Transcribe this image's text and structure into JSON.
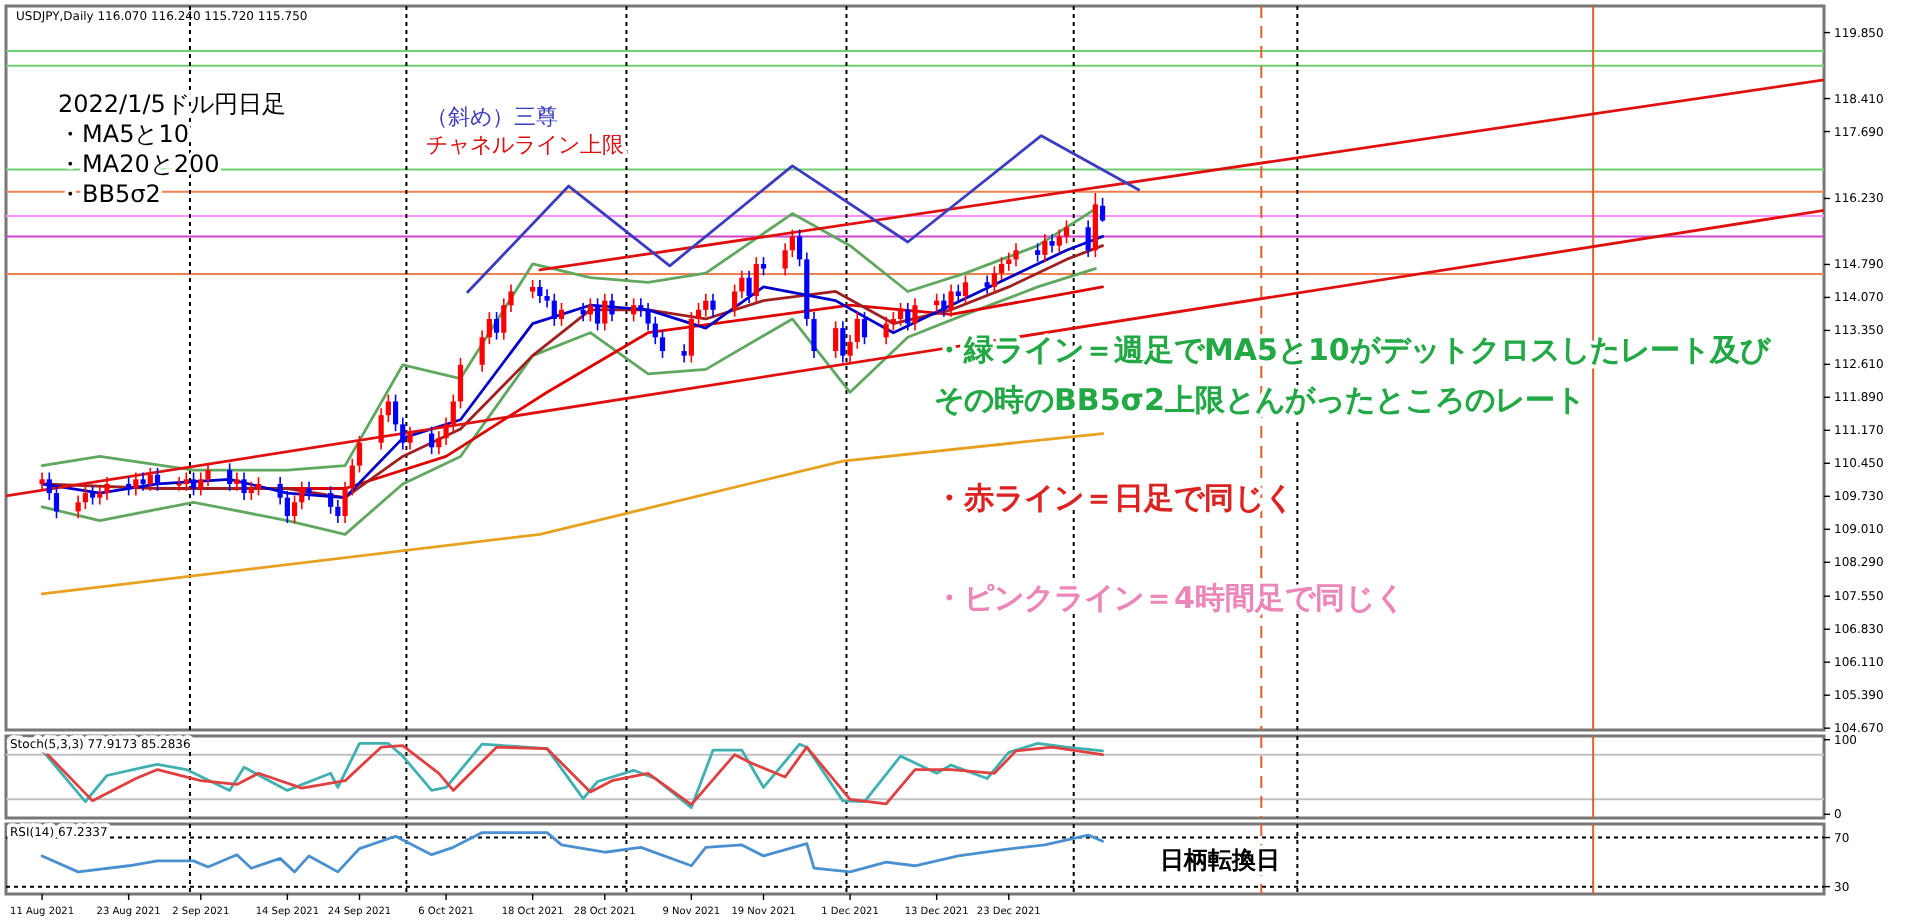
{
  "chart_data": [
    {
      "type": "candlestick",
      "title": "USDJPY,Daily 116.070 116.240 115.720 115.750",
      "annotations": [
        "2022/1/5ドル円日足",
        "・MA5と10",
        "・MA20と200",
        "・BB5σ2",
        "（斜め）三尊",
        "チャネルライン上限",
        "・緑ライン＝週足でMA5と10がデットクロスしたレート及び",
        "その時のBB5σ2上限とんがったところのレート",
        "・赤ライン＝日足で同じく",
        "・ピンクライン＝4時間足で同じく"
      ],
      "x": [
        "2021-08-11",
        "2021-08-12",
        "2021-08-13",
        "2021-08-16",
        "2021-08-17",
        "2021-08-18",
        "2021-08-19",
        "2021-08-20",
        "2021-08-23",
        "2021-08-24",
        "2021-08-25",
        "2021-08-26",
        "2021-08-27",
        "2021-08-30",
        "2021-08-31",
        "2021-09-01",
        "2021-09-02",
        "2021-09-03",
        "2021-09-06",
        "2021-09-07",
        "2021-09-08",
        "2021-09-09",
        "2021-09-10",
        "2021-09-13",
        "2021-09-14",
        "2021-09-15",
        "2021-09-16",
        "2021-09-17",
        "2021-09-20",
        "2021-09-21",
        "2021-09-22",
        "2021-09-23",
        "2021-09-24",
        "2021-09-27",
        "2021-09-28",
        "2021-09-29",
        "2021-09-30",
        "2021-10-01",
        "2021-10-04",
        "2021-10-05",
        "2021-10-06",
        "2021-10-07",
        "2021-10-08",
        "2021-10-11",
        "2021-10-12",
        "2021-10-13",
        "2021-10-14",
        "2021-10-15",
        "2021-10-18",
        "2021-10-19",
        "2021-10-20",
        "2021-10-21",
        "2021-10-22",
        "2021-10-25",
        "2021-10-26",
        "2021-10-27",
        "2021-10-28",
        "2021-10-29",
        "2021-11-01",
        "2021-11-02",
        "2021-11-03",
        "2021-11-04",
        "2021-11-05",
        "2021-11-08",
        "2021-11-09",
        "2021-11-10",
        "2021-11-11",
        "2021-11-12",
        "2021-11-15",
        "2021-11-16",
        "2021-11-17",
        "2021-11-18",
        "2021-11-19",
        "2021-11-22",
        "2021-11-23",
        "2021-11-24",
        "2021-11-25",
        "2021-11-26",
        "2021-11-29",
        "2021-11-30",
        "2021-12-01",
        "2021-12-02",
        "2021-12-03",
        "2021-12-06",
        "2021-12-07",
        "2021-12-08",
        "2021-12-09",
        "2021-12-10",
        "2021-12-13",
        "2021-12-14",
        "2021-12-15",
        "2021-12-16",
        "2021-12-17",
        "2021-12-20",
        "2021-12-21",
        "2021-12-22",
        "2021-12-23",
        "2021-12-24",
        "2021-12-27",
        "2021-12-28",
        "2021-12-29",
        "2021-12-30",
        "2021-12-31",
        "2022-01-03",
        "2022-01-04",
        "2022-01-05"
      ],
      "ohlc": [
        [
          110.0,
          110.25,
          109.85,
          110.1
        ],
        [
          110.1,
          110.25,
          109.65,
          109.8
        ],
        [
          109.8,
          109.95,
          109.25,
          109.4
        ],
        [
          109.4,
          109.75,
          109.25,
          109.6
        ],
        [
          109.6,
          109.95,
          109.45,
          109.8
        ],
        [
          109.8,
          109.95,
          109.55,
          109.7
        ],
        [
          109.7,
          109.95,
          109.55,
          109.8
        ],
        [
          109.8,
          110.15,
          109.65,
          110.0
        ],
        [
          110.0,
          110.15,
          109.75,
          109.9
        ],
        [
          109.9,
          110.25,
          109.75,
          110.1
        ],
        [
          110.1,
          110.25,
          109.85,
          110.0
        ],
        [
          110.0,
          110.35,
          109.85,
          110.2
        ],
        [
          110.2,
          110.35,
          109.85,
          110.0
        ],
        [
          110.0,
          110.15,
          109.85,
          110.0
        ],
        [
          110.0,
          110.25,
          109.85,
          110.1
        ],
        [
          110.1,
          110.25,
          109.75,
          109.9
        ],
        [
          109.9,
          110.25,
          109.75,
          110.1
        ],
        [
          110.1,
          110.45,
          109.95,
          110.3
        ],
        [
          110.3,
          110.45,
          109.85,
          110.0
        ],
        [
          110.0,
          110.25,
          109.85,
          110.1
        ],
        [
          110.1,
          110.25,
          109.65,
          109.8
        ],
        [
          109.8,
          110.05,
          109.65,
          109.9
        ],
        [
          109.9,
          110.15,
          109.75,
          110.0
        ],
        [
          110.0,
          110.15,
          109.55,
          109.7
        ],
        [
          109.7,
          109.85,
          109.15,
          109.3
        ],
        [
          109.3,
          109.75,
          109.15,
          109.6
        ],
        [
          109.6,
          110.05,
          109.45,
          109.9
        ],
        [
          109.9,
          110.05,
          109.65,
          109.8
        ],
        [
          109.8,
          109.95,
          109.35,
          109.5
        ],
        [
          109.5,
          109.65,
          109.15,
          109.3
        ],
        [
          109.3,
          110.05,
          109.15,
          109.9
        ],
        [
          109.9,
          110.55,
          109.75,
          110.4
        ],
        [
          110.4,
          111.05,
          110.25,
          110.9
        ],
        [
          110.9,
          111.65,
          110.75,
          111.5
        ],
        [
          111.5,
          111.95,
          111.35,
          111.8
        ],
        [
          111.8,
          111.95,
          111.15,
          111.3
        ],
        [
          111.3,
          111.45,
          110.75,
          110.9
        ],
        [
          110.9,
          111.25,
          110.75,
          111.1
        ],
        [
          111.1,
          111.25,
          110.65,
          110.8
        ],
        [
          110.8,
          111.15,
          110.65,
          111.0
        ],
        [
          111.0,
          111.45,
          110.85,
          111.3
        ],
        [
          111.3,
          111.95,
          111.15,
          111.8
        ],
        [
          111.8,
          112.75,
          111.65,
          112.6
        ],
        [
          112.6,
          113.35,
          112.45,
          113.2
        ],
        [
          113.2,
          113.75,
          113.05,
          113.6
        ],
        [
          113.6,
          113.75,
          113.15,
          113.3
        ],
        [
          113.3,
          114.05,
          113.15,
          113.9
        ],
        [
          113.9,
          114.35,
          113.75,
          114.2
        ],
        [
          114.2,
          114.45,
          114.05,
          114.3
        ],
        [
          114.3,
          114.45,
          113.95,
          114.1
        ],
        [
          114.1,
          114.25,
          113.85,
          114.0
        ],
        [
          114.0,
          114.15,
          113.45,
          113.6
        ],
        [
          113.6,
          113.95,
          113.45,
          113.8
        ],
        [
          113.8,
          113.95,
          113.55,
          113.7
        ],
        [
          113.7,
          114.05,
          113.55,
          113.9
        ],
        [
          113.9,
          114.05,
          113.35,
          113.5
        ],
        [
          113.5,
          114.15,
          113.35,
          114.0
        ],
        [
          114.0,
          114.15,
          113.55,
          113.7
        ],
        [
          113.7,
          114.05,
          113.55,
          113.9
        ],
        [
          113.9,
          114.05,
          113.65,
          113.8
        ],
        [
          113.8,
          113.95,
          113.35,
          113.5
        ],
        [
          113.5,
          113.65,
          113.05,
          113.2
        ],
        [
          113.2,
          113.35,
          112.75,
          112.9
        ],
        [
          112.9,
          113.05,
          112.65,
          112.8
        ],
        [
          112.8,
          113.75,
          112.65,
          113.6
        ],
        [
          113.6,
          113.95,
          113.45,
          113.8
        ],
        [
          113.8,
          114.15,
          113.65,
          114.0
        ],
        [
          114.0,
          114.15,
          113.65,
          113.8
        ],
        [
          113.8,
          114.35,
          113.65,
          114.2
        ],
        [
          114.2,
          114.65,
          114.05,
          114.5
        ],
        [
          114.5,
          114.65,
          113.95,
          114.1
        ],
        [
          114.1,
          114.95,
          113.95,
          114.8
        ],
        [
          114.8,
          114.95,
          114.55,
          114.7
        ],
        [
          114.7,
          115.25,
          114.55,
          115.1
        ],
        [
          115.1,
          115.55,
          114.95,
          115.4
        ],
        [
          115.4,
          115.55,
          114.75,
          114.9
        ],
        [
          114.9,
          115.05,
          113.45,
          113.6
        ],
        [
          113.6,
          113.75,
          112.75,
          112.9
        ],
        [
          112.9,
          113.55,
          112.75,
          113.4
        ],
        [
          113.4,
          113.55,
          112.65,
          112.8
        ],
        [
          112.8,
          113.25,
          112.65,
          113.1
        ],
        [
          113.1,
          113.75,
          112.95,
          113.6
        ],
        [
          113.6,
          113.75,
          113.05,
          113.2
        ],
        [
          113.2,
          113.65,
          113.05,
          113.5
        ],
        [
          113.5,
          113.75,
          113.35,
          113.6
        ],
        [
          113.6,
          113.95,
          113.45,
          113.8
        ],
        [
          113.8,
          113.95,
          113.35,
          113.5
        ],
        [
          113.5,
          114.05,
          113.35,
          113.9
        ],
        [
          113.9,
          114.15,
          113.75,
          114.0
        ],
        [
          114.0,
          114.15,
          113.65,
          113.8
        ],
        [
          113.8,
          114.35,
          113.65,
          114.2
        ],
        [
          114.2,
          114.35,
          113.95,
          114.1
        ],
        [
          114.1,
          114.55,
          113.95,
          114.4
        ],
        [
          114.4,
          114.55,
          114.15,
          114.3
        ],
        [
          114.3,
          114.75,
          114.15,
          114.6
        ],
        [
          114.6,
          114.95,
          114.45,
          114.8
        ],
        [
          114.8,
          115.05,
          114.65,
          114.9
        ],
        [
          114.9,
          115.25,
          114.75,
          115.1
        ],
        [
          115.1,
          115.25,
          114.85,
          115.0
        ],
        [
          115.0,
          115.45,
          114.85,
          115.3
        ],
        [
          115.3,
          115.45,
          115.05,
          115.2
        ],
        [
          115.2,
          115.55,
          115.05,
          115.4
        ],
        [
          115.4,
          115.75,
          115.25,
          115.6
        ],
        [
          115.6,
          115.75,
          114.95,
          115.1
        ],
        [
          115.1,
          116.35,
          114.95,
          116.1
        ],
        [
          116.07,
          116.24,
          115.72,
          115.75
        ]
      ],
      "series": [
        {
          "type": "line",
          "color": "#e8a020",
          "x": [
            "2021-08-11",
            "2021-10-19",
            "2021-11-30",
            "2022-01-05"
          ],
          "values": [
            107.6,
            108.9,
            110.5,
            111.1
          ]
        },
        {
          "type": "line",
          "color": "#60a860",
          "x": [
            "2021-08-11",
            "2021-08-19",
            "2021-09-01",
            "2021-09-14",
            "2021-09-22",
            "2021-09-30",
            "2021-10-08",
            "2021-10-18",
            "2021-10-26",
            "2021-11-03",
            "2021-11-11",
            "2021-11-23",
            "2021-12-01",
            "2021-12-09",
            "2021-12-17",
            "2021-12-27",
            "2022-01-04"
          ],
          "values": [
            110.4,
            110.6,
            110.3,
            110.3,
            110.4,
            112.6,
            112.3,
            114.8,
            114.5,
            114.4,
            114.6,
            115.9,
            115.2,
            114.2,
            114.6,
            115.2,
            116.0
          ]
        },
        {
          "type": "line",
          "color": "#60a860",
          "x": [
            "2021-08-11",
            "2021-08-19",
            "2021-09-01",
            "2021-09-14",
            "2021-09-22",
            "2021-09-30",
            "2021-10-08",
            "2021-10-18",
            "2021-10-26",
            "2021-11-03",
            "2021-11-11",
            "2021-11-23",
            "2021-12-01",
            "2021-12-09",
            "2021-12-17",
            "2021-12-27",
            "2022-01-04"
          ],
          "values": [
            109.5,
            109.2,
            109.6,
            109.2,
            108.9,
            110.0,
            110.6,
            112.8,
            113.3,
            112.4,
            112.5,
            113.6,
            112.0,
            113.2,
            113.7,
            114.3,
            114.7
          ]
        },
        {
          "type": "line",
          "color": "#e00000",
          "x": [
            "2021-09-08",
            "2021-09-22",
            "2021-10-06",
            "2021-10-20",
            "2021-11-03",
            "2021-11-17",
            "2021-12-01",
            "2021-12-15",
            "2021-12-29",
            "2022-01-05"
          ],
          "values": [
            109.9,
            109.9,
            110.6,
            112.0,
            113.3,
            113.6,
            113.9,
            113.7,
            114.1,
            114.3
          ]
        },
        {
          "type": "line",
          "color": "#a02020",
          "x": [
            "2021-08-11",
            "2021-08-27",
            "2021-09-14",
            "2021-09-22",
            "2021-09-30",
            "2021-10-08",
            "2021-10-18",
            "2021-10-26",
            "2021-11-03",
            "2021-11-11",
            "2021-11-19",
            "2021-11-29",
            "2021-12-07",
            "2021-12-15",
            "2021-12-23",
            "2021-12-31",
            "2022-01-05"
          ],
          "values": [
            110.0,
            109.9,
            109.9,
            109.7,
            110.6,
            111.2,
            112.8,
            113.8,
            113.8,
            113.6,
            114.0,
            114.2,
            113.5,
            113.8,
            114.3,
            114.9,
            115.2
          ]
        },
        {
          "type": "line",
          "color": "#0000c8",
          "x": [
            "2021-08-11",
            "2021-08-19",
            "2021-08-27",
            "2021-09-06",
            "2021-09-14",
            "2021-09-22",
            "2021-09-30",
            "2021-10-08",
            "2021-10-18",
            "2021-10-26",
            "2021-11-03",
            "2021-11-11",
            "2021-11-19",
            "2021-11-29",
            "2021-12-07",
            "2021-12-15",
            "2021-12-23",
            "2021-12-31",
            "2022-01-05"
          ],
          "values": [
            110.0,
            109.8,
            110.0,
            110.1,
            109.8,
            109.7,
            111.0,
            111.4,
            113.5,
            113.9,
            113.8,
            113.4,
            114.3,
            114.0,
            113.3,
            113.9,
            114.5,
            115.1,
            115.4
          ]
        },
        {
          "type": "line",
          "color": "#e01010",
          "x": [
            "2021-08-06",
            "2022-04-15"
          ],
          "values": [
            109.74,
            115.97
          ]
        },
        {
          "type": "line",
          "color": "#e01010",
          "x": [
            "2021-10-19",
            "2022-04-15"
          ],
          "values": [
            114.67,
            118.82
          ]
        },
        {
          "type": "line",
          "color": "#3c3cc0",
          "x": [
            "2021-10-09",
            "2021-10-23",
            "2021-11-06",
            "2021-11-23",
            "2021-12-09",
            "2021-12-27T12:00",
            "2022-01-10"
          ],
          "values": [
            114.19,
            116.5,
            114.76,
            116.94,
            115.28,
            117.6,
            116.42
          ]
        }
      ],
      "xlim": [
        "2021-08-06",
        "2022-04-15"
      ],
      "ylim": [
        104.63,
        120.43
      ],
      "yticks": [
        {
          "value": 104.67,
          "label": "104.670"
        },
        {
          "value": 105.39,
          "label": "105.390"
        },
        {
          "value": 106.11,
          "label": "106.110"
        },
        {
          "value": 106.83,
          "label": "106.830"
        },
        {
          "value": 107.55,
          "label": "107.550"
        },
        {
          "value": 108.29,
          "label": "108.290"
        },
        {
          "value": 109.01,
          "label": "109.010"
        },
        {
          "value": 109.73,
          "label": "109.730"
        },
        {
          "value": 110.45,
          "label": "110.450"
        },
        {
          "value": 111.17,
          "label": "111.170"
        },
        {
          "value": 111.89,
          "label": "111.890"
        },
        {
          "value": 112.61,
          "label": "112.610"
        },
        {
          "value": 113.35,
          "label": "113.350"
        },
        {
          "value": 114.07,
          "label": "114.070"
        },
        {
          "value": 114.79,
          "label": "114.790"
        },
        {
          "value": 116.23,
          "label": "116.230"
        },
        {
          "value": 117.69,
          "label": "117.690"
        },
        {
          "value": 118.41,
          "label": "118.410"
        },
        {
          "value": 119.85,
          "label": "119.850"
        }
      ],
      "tick_labels": "y",
      "ref_lines": [
        {
          "axis": "y",
          "value": 119.446,
          "color": "#70d070"
        },
        {
          "axis": "y",
          "value": 119.126,
          "color": "#70d070"
        },
        {
          "axis": "y",
          "value": 116.863,
          "color": "#70d070"
        },
        {
          "axis": "y",
          "value": 116.376,
          "color": "#f08050"
        },
        {
          "axis": "y",
          "value": 115.849,
          "color": "#ff90ff"
        },
        {
          "axis": "y",
          "value": 115.4,
          "color": "#d040d0"
        },
        {
          "axis": "y",
          "value": 114.58,
          "color": "#f08050"
        },
        {
          "axis": "x",
          "value": "2021-08-31T12:00",
          "color": "#000000",
          "line_style": "dotted"
        },
        {
          "axis": "x",
          "value": "2021-09-30T12:00",
          "color": "#000000",
          "line_style": "dotted"
        },
        {
          "axis": "x",
          "value": "2021-10-31",
          "color": "#000000",
          "line_style": "dotted"
        },
        {
          "axis": "x",
          "value": "2021-11-30T12:00",
          "color": "#000000",
          "line_style": "dotted"
        },
        {
          "axis": "x",
          "value": "2022-01-01",
          "color": "#000000",
          "line_style": "dotted"
        },
        {
          "axis": "x",
          "value": "2022-02-01",
          "color": "#000000",
          "line_style": "dotted"
        },
        {
          "axis": "x",
          "value": "2022-01-27",
          "color": "#e06030",
          "line_style": "dashed"
        },
        {
          "axis": "x",
          "value": "2022-03-14",
          "color": "#e06030",
          "line_style": "solid"
        }
      ]
    },
    {
      "type": "line",
      "annotations": [
        "Stoch(5,3,3) 77.9173 85.2836"
      ],
      "series": [
        {
          "color": "#40b0b0",
          "x": [
            "2021-08-11",
            "2021-08-17",
            "2021-08-20",
            "2021-08-25",
            "2021-08-27",
            "2021-08-31",
            "2021-09-06",
            "2021-09-08",
            "2021-09-14",
            "2021-09-20",
            "2021-09-21",
            "2021-09-24",
            "2021-09-28",
            "2021-09-30",
            "2021-10-04",
            "2021-10-06",
            "2021-10-11",
            "2021-10-14",
            "2021-10-20",
            "2021-10-25",
            "2021-10-27",
            "2021-11-01",
            "2021-11-04",
            "2021-11-09",
            "2021-11-12",
            "2021-11-16",
            "2021-11-19",
            "2021-11-24",
            "2021-11-25",
            "2021-11-30",
            "2021-12-03",
            "2021-12-08",
            "2021-12-13",
            "2021-12-15",
            "2021-12-20",
            "2021-12-23",
            "2021-12-27",
            "2021-12-31",
            "2022-01-05"
          ],
          "values": [
            86,
            17,
            52,
            63,
            67,
            60,
            32,
            63,
            32,
            55,
            36,
            95,
            95,
            78,
            32,
            36,
            94,
            92,
            88,
            21,
            44,
            59,
            48,
            9,
            86,
            86,
            36,
            94,
            90,
            18,
            17,
            78,
            55,
            66,
            48,
            83,
            95,
            90,
            85
          ]
        },
        {
          "color": "#e04040",
          "x": [
            "2021-08-11",
            "2021-08-18",
            "2021-08-24",
            "2021-08-27",
            "2021-09-02",
            "2021-09-07",
            "2021-09-10",
            "2021-09-16",
            "2021-09-22",
            "2021-09-27",
            "2021-09-30",
            "2021-10-05",
            "2021-10-07",
            "2021-10-13",
            "2021-10-20",
            "2021-10-26",
            "2021-10-29",
            "2021-11-03",
            "2021-11-09",
            "2021-11-15",
            "2021-11-17",
            "2021-11-22",
            "2021-11-25",
            "2021-12-01",
            "2021-12-06",
            "2021-12-10",
            "2021-12-15",
            "2021-12-21",
            "2021-12-24",
            "2021-12-29",
            "2022-01-05"
          ],
          "values": [
            88,
            18,
            48,
            60,
            45,
            40,
            55,
            35,
            45,
            90,
            92,
            55,
            32,
            90,
            88,
            30,
            45,
            55,
            13,
            80,
            70,
            50,
            90,
            20,
            14,
            60,
            60,
            55,
            85,
            90,
            80
          ]
        }
      ],
      "xlim": [
        "2021-08-06",
        "2022-04-15"
      ],
      "ylim": [
        -5,
        105
      ],
      "yticks": [
        100,
        0
      ],
      "tick_labels": "y",
      "ref_lines": [
        {
          "axis": "y",
          "value": 80,
          "color": "#c0c0c0"
        },
        {
          "axis": "y",
          "value": 20,
          "color": "#c0c0c0"
        },
        {
          "axis": "x",
          "value": "2021-08-31T12:00",
          "color": "#000000",
          "line_style": "dotted"
        },
        {
          "axis": "x",
          "value": "2021-09-30T12:00",
          "color": "#000000",
          "line_style": "dotted"
        },
        {
          "axis": "x",
          "value": "2021-10-31",
          "color": "#000000",
          "line_style": "dotted"
        },
        {
          "axis": "x",
          "value": "2021-11-30T12:00",
          "color": "#000000",
          "line_style": "dotted"
        },
        {
          "axis": "x",
          "value": "2022-01-01",
          "color": "#000000",
          "line_style": "dotted"
        },
        {
          "axis": "x",
          "value": "2022-02-01",
          "color": "#000000",
          "line_style": "dotted"
        },
        {
          "axis": "x",
          "value": "2022-01-27",
          "color": "#e06030",
          "line_style": "dashed"
        },
        {
          "axis": "x",
          "value": "2022-03-14",
          "color": "#e06030",
          "line_style": "solid"
        }
      ]
    },
    {
      "type": "line",
      "annotations": [
        "RSI(14) 67.2337",
        "日柄転換日"
      ],
      "series": [
        {
          "color": "#4a90d0",
          "x": [
            "2021-08-11",
            "2021-08-16",
            "2021-08-23",
            "2021-08-27",
            "2021-09-01",
            "2021-09-03",
            "2021-09-07",
            "2021-09-09",
            "2021-09-13",
            "2021-09-15",
            "2021-09-17",
            "2021-09-21",
            "2021-09-24",
            "2021-09-29",
            "2021-10-04",
            "2021-10-07",
            "2021-10-11",
            "2021-10-15",
            "2021-10-20",
            "2021-10-22",
            "2021-10-28",
            "2021-11-02",
            "2021-11-09",
            "2021-11-11",
            "2021-11-16",
            "2021-11-19",
            "2021-11-25",
            "2021-11-26",
            "2021-12-01",
            "2021-12-06",
            "2021-12-10",
            "2021-12-16",
            "2021-12-22",
            "2021-12-28",
            "2022-01-03",
            "2022-01-05"
          ],
          "values": [
            55,
            42,
            47,
            51,
            51,
            46,
            56,
            45,
            53,
            42,
            55,
            42,
            61,
            71,
            56,
            62,
            74,
            74,
            74,
            64,
            58,
            62,
            47,
            62,
            64,
            55,
            65,
            45,
            42,
            50,
            47,
            55,
            60,
            64,
            72,
            67
          ]
        }
      ],
      "xlim": [
        "2021-08-06",
        "2022-04-15"
      ],
      "ylim": [
        24,
        81
      ],
      "yticks": [
        70,
        30
      ],
      "xticks": [
        {
          "value": "2021-08-11",
          "label": "11 Aug 2021"
        },
        {
          "value": "2021-08-23",
          "label": "23 Aug 2021"
        },
        {
          "value": "2021-09-02",
          "label": "2 Sep 2021"
        },
        {
          "value": "2021-09-14",
          "label": "14 Sep 2021"
        },
        {
          "value": "2021-09-24",
          "label": "24 Sep 2021"
        },
        {
          "value": "2021-10-06",
          "label": "6 Oct 2021"
        },
        {
          "value": "2021-10-18",
          "label": "18 Oct 2021"
        },
        {
          "value": "2021-10-28",
          "label": "28 Oct 2021"
        },
        {
          "value": "2021-11-09",
          "label": "9 Nov 2021"
        },
        {
          "value": "2021-11-19",
          "label": "19 Nov 2021"
        },
        {
          "value": "2021-12-01",
          "label": "1 Dec 2021"
        },
        {
          "value": "2021-12-13",
          "label": "13 Dec 2021"
        },
        {
          "value": "2021-12-23",
          "label": "23 Dec 2021"
        }
      ],
      "ref_lines": [
        {
          "axis": "y",
          "value": 70,
          "color": "#000000",
          "line_style": "dotted"
        },
        {
          "axis": "y",
          "value": 30,
          "color": "#000000",
          "line_style": "dotted"
        },
        {
          "axis": "x",
          "value": "2021-08-31T12:00",
          "color": "#000000",
          "line_style": "dotted"
        },
        {
          "axis": "x",
          "value": "2021-09-30T12:00",
          "color": "#000000",
          "line_style": "dotted"
        },
        {
          "axis": "x",
          "value": "2021-10-31",
          "color": "#000000",
          "line_style": "dotted"
        },
        {
          "axis": "x",
          "value": "2021-11-30T12:00",
          "color": "#000000",
          "line_style": "dotted"
        },
        {
          "axis": "x",
          "value": "2022-01-01",
          "color": "#000000",
          "line_style": "dotted"
        },
        {
          "axis": "x",
          "value": "2022-02-01",
          "color": "#000000",
          "line_style": "dotted"
        },
        {
          "axis": "x",
          "value": "2022-01-27",
          "color": "#e06030",
          "line_style": "dashed"
        },
        {
          "axis": "x",
          "value": "2022-03-14",
          "color": "#e06030",
          "line_style": "solid"
        }
      ]
    }
  ]
}
